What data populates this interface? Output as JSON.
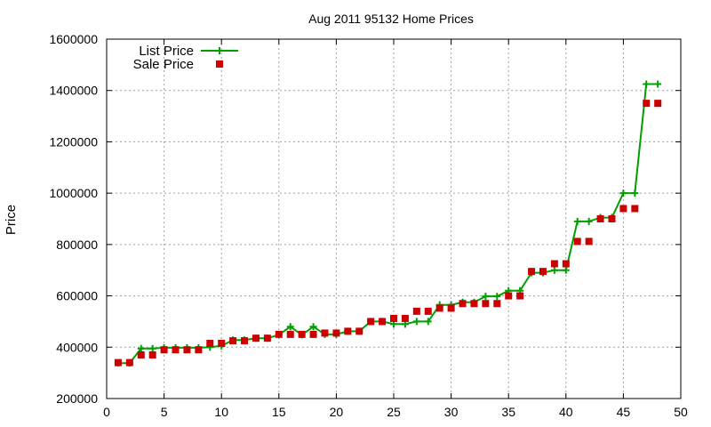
{
  "chart_data": {
    "type": "line",
    "title": "Aug 2011 95132 Home Prices",
    "xlabel": "",
    "ylabel": "Price",
    "xlim": [
      0,
      50
    ],
    "ylim": [
      200000,
      1600000
    ],
    "x_ticks": [
      "0",
      "5",
      "10",
      "15",
      "20",
      "25",
      "30",
      "35",
      "40",
      "45",
      "50"
    ],
    "y_ticks": [
      "200000",
      "400000",
      "600000",
      "800000",
      "1000000",
      "1200000",
      "1400000",
      "1600000"
    ],
    "grid": true,
    "legend_position": "top-left",
    "x": [
      1,
      2,
      3,
      4,
      5,
      6,
      7,
      8,
      9,
      10,
      11,
      12,
      13,
      14,
      15,
      16,
      17,
      18,
      19,
      20,
      21,
      22,
      23,
      24,
      25,
      26,
      27,
      28,
      29,
      30,
      31,
      32,
      33,
      34,
      35,
      36,
      37,
      38,
      39,
      40,
      41,
      42,
      43,
      44,
      45,
      46,
      47,
      48
    ],
    "series": [
      {
        "name": "List Price",
        "style": "line+cross",
        "color": "#00a000",
        "values": [
          338000,
          338000,
          395000,
          395000,
          398000,
          398000,
          398000,
          398000,
          400000,
          405000,
          428000,
          428000,
          435000,
          435000,
          448000,
          480000,
          448000,
          480000,
          450000,
          450000,
          462000,
          462000,
          500000,
          500000,
          490000,
          490000,
          500000,
          500000,
          565000,
          565000,
          575000,
          575000,
          598000,
          598000,
          620000,
          620000,
          690000,
          690000,
          700000,
          700000,
          890000,
          890000,
          905000,
          905000,
          1000000,
          1000000,
          1425000,
          1425000
        ]
      },
      {
        "name": "Sale Price",
        "style": "square",
        "color": "#cc0000",
        "values": [
          340000,
          340000,
          370000,
          370000,
          390000,
          390000,
          390000,
          390000,
          415000,
          415000,
          425000,
          425000,
          435000,
          435000,
          450000,
          450000,
          450000,
          450000,
          455000,
          455000,
          462000,
          462000,
          500000,
          500000,
          512000,
          512000,
          540000,
          540000,
          552000,
          552000,
          570000,
          570000,
          570000,
          570000,
          600000,
          600000,
          695000,
          695000,
          725000,
          725000,
          812000,
          812000,
          900000,
          900000,
          940000,
          940000,
          1350000,
          1350000
        ]
      }
    ]
  }
}
